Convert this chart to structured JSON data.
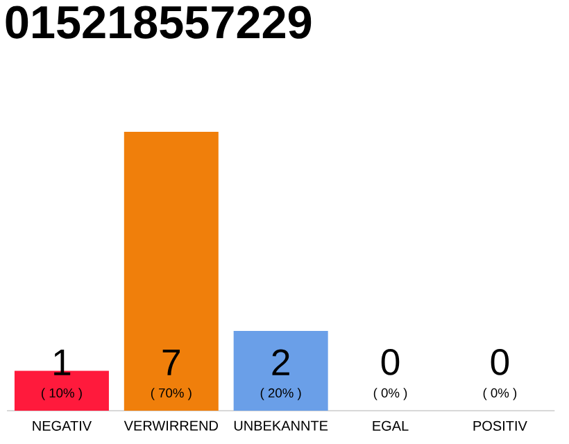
{
  "chart_data": {
    "type": "bar",
    "title": "015218557229",
    "categories": [
      "NEGATIV",
      "VERWIRREND",
      "UNBEKANNTE",
      "EGAL",
      "POSITIV"
    ],
    "values": [
      1,
      7,
      2,
      0,
      0
    ],
    "colors": [
      "#ff1a3c",
      "#f07f0b",
      "#6a9fe8",
      "#9e9e9e",
      "#9e9e9e"
    ],
    "ylim": [
      0,
      7
    ],
    "data_labels": true,
    "annotations": [
      "( 10% )",
      "( 70% )",
      "( 20% )",
      "( 0% )",
      "( 0% )"
    ]
  }
}
